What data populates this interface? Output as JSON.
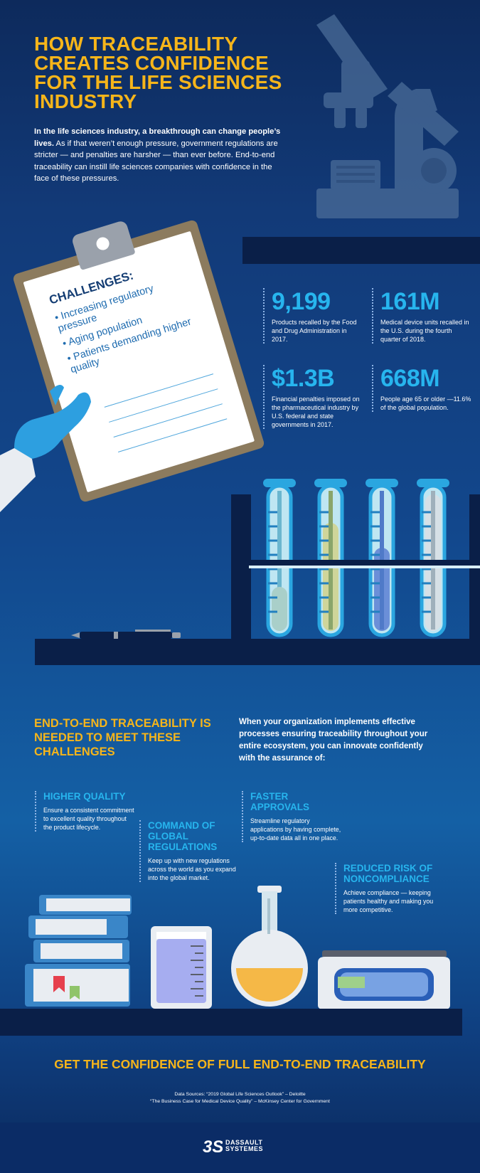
{
  "header": {
    "title": "HOW TRACEABILITY CREATES CONFIDENCE FOR THE LIFE SCIENCES INDUSTRY",
    "intro_bold": "In the life sciences industry, a breakthrough can change people’s lives.",
    "intro_rest": " As if that weren’t enough pressure, government regulations are stricter — and penalties are harsher — than ever before. End-to-end traceability can instill life sciences companies with confidence in the face of these pressures."
  },
  "clipboard": {
    "title": "CHALLENGES:",
    "items": [
      "Increasing regulatory pressure",
      "Aging population",
      "Patients demanding higher quality"
    ]
  },
  "stats": [
    {
      "value": "9,199",
      "desc": "Products recalled by the Food and Drug Administration in 2017."
    },
    {
      "value": "161M",
      "desc": "Medical device units recalled in the U.S. during the fourth quarter of 2018."
    },
    {
      "value": "$1.3B",
      "desc": "Financial penalties imposed on the pharmaceutical industry by U.S. federal and state governments in 2017."
    },
    {
      "value": "668M",
      "desc": "People age 65 or older —11.6% of the global population."
    }
  ],
  "section2": {
    "title": "END-TO-END TRACEABILITY IS NEEDED TO MEET THESE CHALLENGES",
    "intro": "When your organization implements effective processes ensuring traceability throughout your entire ecosystem, you can innovate confidently with the assurance of:"
  },
  "benefits": [
    {
      "title": "HIGHER QUALITY",
      "desc": "Ensure a consistent commitment to excellent quality throughout the product lifecycle."
    },
    {
      "title": "COMMAND OF GLOBAL REGULATIONS",
      "desc": "Keep up with new regulations across the world as you expand into the global market."
    },
    {
      "title": "FASTER APPROVALS",
      "desc": "Streamline regulatory applications by having complete, up-to-date data all in one place."
    },
    {
      "title": "REDUCED RISK OF NONCOMPLIANCE",
      "desc": "Achieve compliance — keeping patients healthy and making you more competitive."
    }
  ],
  "cta": "GET THE CONFIDENCE OF FULL END-TO-END TRACEABILITY",
  "sources": {
    "line1": "Data Sources: “2019 Global Life Sciences Outlook” – Deloitte",
    "line2": "“The Business Case for Medical Device Quality” – McKinsey Center for Government"
  },
  "logo": {
    "line1": "DASSAULT",
    "line2": "SYSTEMES"
  },
  "colors": {
    "title_yellow": "#f6b51a",
    "stat_blue": "#27b5ee",
    "background_navy": "#123a78"
  },
  "icons": [
    "microscope-icon",
    "clipboard-icon",
    "test-tubes-icon",
    "pen-icon",
    "books-icon",
    "beaker-icon",
    "flask-icon",
    "scale-icon",
    "logo-icon"
  ]
}
